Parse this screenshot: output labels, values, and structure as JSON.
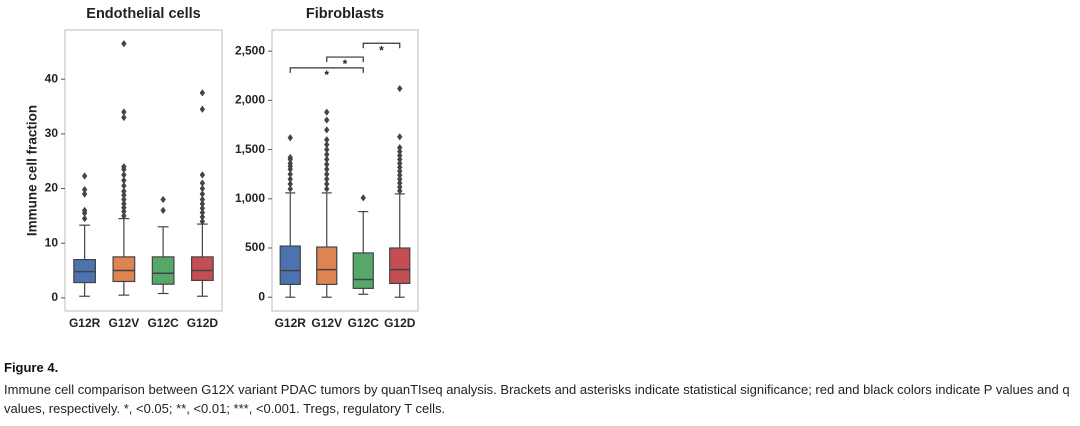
{
  "chart_data": [
    {
      "type": "box",
      "title": "Endothelial cells",
      "ylabel": "Immune cell fraction",
      "categories": [
        "G12R",
        "G12V",
        "G12C",
        "G12D"
      ],
      "colors": [
        "#4c72b0",
        "#dd8452",
        "#55a868",
        "#c44e52"
      ],
      "ylim": [
        -2.4,
        49
      ],
      "yticks": [
        0,
        10,
        20,
        30,
        40
      ],
      "boxes": [
        {
          "whislo": 0.3,
          "q1": 2.8,
          "median": 4.8,
          "q3": 7.0,
          "whishi": 13.3,
          "fliers": [
            14.5,
            15.5,
            16,
            19,
            19.8,
            22.3
          ]
        },
        {
          "whislo": 0.5,
          "q1": 3.0,
          "median": 5.0,
          "q3": 7.5,
          "whishi": 14.5,
          "fliers": [
            15,
            15.8,
            16.5,
            17.2,
            18,
            18.8,
            19.5,
            20.5,
            21.5,
            22.5,
            23.5,
            24,
            33,
            34,
            46.5
          ]
        },
        {
          "whislo": 0.8,
          "q1": 2.5,
          "median": 4.5,
          "q3": 7.5,
          "whishi": 13,
          "fliers": [
            16,
            18
          ]
        },
        {
          "whislo": 0.3,
          "q1": 3.2,
          "median": 5.0,
          "q3": 7.5,
          "whishi": 13.5,
          "fliers": [
            14,
            14.8,
            15.6,
            16.4,
            17.2,
            18,
            19,
            20,
            21,
            22.5,
            34.5,
            37.5
          ]
        }
      ]
    },
    {
      "type": "box",
      "title": "Fibroblasts",
      "categories": [
        "G12R",
        "G12V",
        "G12C",
        "G12D"
      ],
      "colors": [
        "#4c72b0",
        "#dd8452",
        "#55a868",
        "#c44e52"
      ],
      "ylim": [
        -140,
        2715
      ],
      "yticks": [
        0,
        500,
        {
          "value": 1000,
          "label": "1,000"
        },
        {
          "value": 1500,
          "label": "1,500"
        },
        {
          "value": 2000,
          "label": "2,000"
        },
        {
          "value": 2500,
          "label": "2,500"
        }
      ],
      "boxes": [
        {
          "whislo": 0,
          "q1": 130,
          "median": 270,
          "q3": 520,
          "whishi": 1060,
          "fliers": [
            1100,
            1150,
            1200,
            1250,
            1300,
            1330,
            1360,
            1400,
            1420,
            1620
          ]
        },
        {
          "whislo": 0,
          "q1": 130,
          "median": 280,
          "q3": 510,
          "whishi": 1060,
          "fliers": [
            1100,
            1150,
            1200,
            1250,
            1300,
            1350,
            1400,
            1450,
            1500,
            1550,
            1600,
            1700,
            1800,
            1880
          ]
        },
        {
          "whislo": 30,
          "q1": 90,
          "median": 180,
          "q3": 450,
          "whishi": 870,
          "fliers": [
            1010
          ]
        },
        {
          "whislo": 0,
          "q1": 140,
          "median": 280,
          "q3": 500,
          "whishi": 1050,
          "fliers": [
            1080,
            1120,
            1160,
            1200,
            1240,
            1280,
            1320,
            1360,
            1400,
            1440,
            1480,
            1520,
            1630,
            2120
          ]
        }
      ],
      "annotations": [
        {
          "from": "G12R",
          "to": "G12C",
          "y": 2330,
          "label": "*"
        },
        {
          "from": "G12V",
          "to": "G12C",
          "y": 2440,
          "label": "*"
        },
        {
          "from": "G12C",
          "to": "G12D",
          "y": 2580,
          "label": "*"
        }
      ]
    }
  ],
  "caption": {
    "label": "Figure 4.",
    "text": "Immune cell comparison between G12X variant PDAC tumors by quanTIseq analysis. Brackets and asterisks indicate statistical significance; red and black colors indicate P values and q values, respectively. *, <0.05; **, <0.01; ***, <0.001. Tregs, regulatory T cells."
  }
}
